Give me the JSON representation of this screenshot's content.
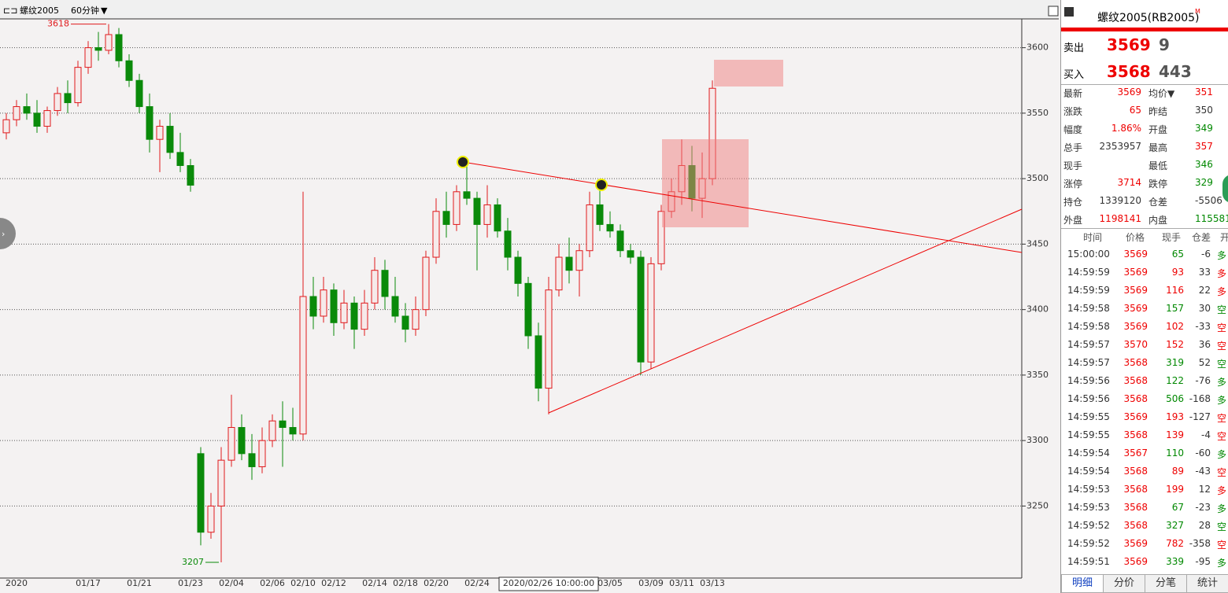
{
  "toolbar": {
    "symbol": "螺纹2005",
    "period": "60分钟"
  },
  "chart_data": {
    "type": "candlestick",
    "open": [
      3535,
      3545,
      3555,
      3550,
      3540,
      3552,
      3565,
      3558,
      3585,
      3600,
      3598,
      3610,
      3590,
      3575,
      3555,
      3530,
      3540,
      3520,
      3510,
      3290,
      3230,
      3250,
      3285,
      3310,
      3290,
      3280,
      3300,
      3315,
      3310,
      3305,
      3410,
      3395,
      3415,
      3390,
      3405,
      3385,
      3405,
      3430,
      3410,
      3395,
      3385,
      3400,
      3440,
      3475,
      3465,
      3490,
      3485,
      3465,
      3480,
      3460,
      3440,
      3420,
      3380,
      3340,
      3415,
      3440,
      3430,
      3445,
      3480,
      3465,
      3460,
      3445,
      3440,
      3360,
      3435,
      3475,
      3490,
      3510,
      3485,
      3500
    ],
    "high": [
      3550,
      3560,
      3565,
      3560,
      3555,
      3570,
      3575,
      3590,
      3605,
      3612,
      3618,
      3615,
      3595,
      3580,
      3565,
      3545,
      3550,
      3535,
      3515,
      3295,
      3260,
      3295,
      3335,
      3320,
      3305,
      3310,
      3320,
      3330,
      3325,
      3490,
      3425,
      3425,
      3420,
      3415,
      3410,
      3415,
      3440,
      3438,
      3425,
      3405,
      3410,
      3445,
      3485,
      3490,
      3495,
      3510,
      3490,
      3495,
      3485,
      3470,
      3445,
      3425,
      3390,
      3425,
      3450,
      3455,
      3450,
      3490,
      3495,
      3475,
      3465,
      3450,
      3445,
      3440,
      3480,
      3500,
      3530,
      3525,
      3520,
      3575
    ],
    "low": [
      3530,
      3540,
      3545,
      3535,
      3535,
      3548,
      3550,
      3555,
      3580,
      3590,
      3595,
      3585,
      3570,
      3550,
      3520,
      3505,
      3515,
      3505,
      3490,
      3220,
      3225,
      3207,
      3280,
      3285,
      3270,
      3275,
      3295,
      3280,
      3300,
      3300,
      3385,
      3390,
      3380,
      3385,
      3370,
      3380,
      3400,
      3400,
      3390,
      3375,
      3380,
      3395,
      3435,
      3455,
      3460,
      3480,
      3430,
      3455,
      3455,
      3430,
      3410,
      3370,
      3330,
      3320,
      3410,
      3420,
      3410,
      3440,
      3460,
      3455,
      3440,
      3435,
      3350,
      3355,
      3430,
      3470,
      3480,
      3475,
      3470,
      3495
    ],
    "close": [
      3545,
      3555,
      3550,
      3540,
      3552,
      3565,
      3558,
      3585,
      3600,
      3598,
      3610,
      3590,
      3575,
      3555,
      3530,
      3540,
      3520,
      3510,
      3495,
      3230,
      3250,
      3285,
      3310,
      3290,
      3280,
      3300,
      3315,
      3310,
      3305,
      3410,
      3395,
      3415,
      3390,
      3405,
      3385,
      3405,
      3430,
      3410,
      3395,
      3385,
      3400,
      3440,
      3475,
      3465,
      3490,
      3485,
      3465,
      3480,
      3460,
      3440,
      3420,
      3380,
      3340,
      3415,
      3440,
      3430,
      3445,
      3480,
      3465,
      3460,
      3445,
      3440,
      3360,
      3435,
      3475,
      3490,
      3510,
      3485,
      3500,
      3569
    ],
    "categories": [
      null,
      "2020",
      null,
      null,
      null,
      null,
      null,
      null,
      "01/17",
      null,
      null,
      null,
      null,
      "01/21",
      null,
      null,
      null,
      null,
      "01/23",
      null,
      null,
      null,
      "02/04",
      null,
      null,
      null,
      "02/06",
      null,
      null,
      "02/10",
      null,
      null,
      "02/12",
      null,
      null,
      null,
      "02/14",
      null,
      null,
      "02/18",
      null,
      null,
      "02/20",
      null,
      null,
      null,
      "02/24",
      null,
      null,
      null,
      null,
      null,
      null,
      "2020/02/26 10:00:00",
      null,
      null,
      null,
      null,
      null,
      "03/05",
      null,
      null,
      null,
      "03/09",
      null,
      null,
      "03/11",
      null,
      null,
      "03/13"
    ],
    "ylim": [
      3195,
      3622
    ],
    "yticks": [
      3250,
      3300,
      3350,
      3400,
      3450,
      3500,
      3550,
      3600
    ],
    "grid": true,
    "max_label": 3618,
    "min_label": 3207,
    "up_color": "#e0191c",
    "down_color": "#0a8a0a"
  },
  "quote": {
    "title": "螺纹2005(RB2005)",
    "title_mark": "M",
    "ask": {
      "label": "卖出",
      "price": "3569",
      "volume": "9"
    },
    "bid": {
      "label": "买入",
      "price": "3568",
      "volume": "443"
    },
    "rows": [
      {
        "cells": [
          "最新",
          "3569",
          "均价▼",
          "351"
        ],
        "colors": [
          "#333",
          "#e00",
          "#333",
          "#e00"
        ]
      },
      {
        "cells": [
          "涨跌",
          "65",
          "昨结",
          "350"
        ],
        "colors": [
          "#333",
          "#e00",
          "#333",
          "#333"
        ]
      },
      {
        "cells": [
          "幅度",
          "1.86%",
          "开盘",
          "349"
        ],
        "colors": [
          "#333",
          "#e00",
          "#333",
          "#080"
        ]
      },
      {
        "cells": [
          "总手",
          "2353957",
          "最高",
          "357"
        ],
        "colors": [
          "#333",
          "#333",
          "#333",
          "#e00"
        ]
      },
      {
        "cells": [
          "现手",
          null,
          "最低",
          "346"
        ],
        "colors": [
          "#333",
          "#333",
          "#333",
          "#080"
        ]
      },
      {
        "cells": [
          "涨停",
          "3714",
          "跌停",
          "329"
        ],
        "colors": [
          "#333",
          "#e00",
          "#333",
          "#080"
        ]
      },
      {
        "cells": [
          "持仓",
          "1339120",
          "仓差",
          "-5506"
        ],
        "colors": [
          "#333",
          "#333",
          "#333",
          "#333"
        ]
      },
      {
        "cells": [
          "外盘",
          "1198141",
          "内盘",
          "115581"
        ],
        "colors": [
          "#333",
          "#e00",
          "#333",
          "#080"
        ]
      }
    ]
  },
  "trades": {
    "header": [
      "时间",
      "价格",
      "现手",
      "仓差",
      "开平"
    ],
    "rows": [
      {
        "cells": [
          "15:00:00",
          "3569",
          "65",
          "-6",
          "多"
        ],
        "color": "#080"
      },
      {
        "cells": [
          "14:59:59",
          "3569",
          "93",
          "33",
          "多"
        ],
        "color": "#e00"
      },
      {
        "cells": [
          "14:59:59",
          "3569",
          "116",
          "22",
          "多"
        ],
        "color": "#e00"
      },
      {
        "cells": [
          "14:59:58",
          "3569",
          "157",
          "30",
          "空"
        ],
        "color": "#080"
      },
      {
        "cells": [
          "14:59:58",
          "3569",
          "102",
          "-33",
          "空"
        ],
        "color": "#e00"
      },
      {
        "cells": [
          "14:59:57",
          "3570",
          "152",
          "36",
          "空"
        ],
        "color": "#e00"
      },
      {
        "cells": [
          "14:59:57",
          "3568",
          "319",
          "52",
          "空"
        ],
        "color": "#080"
      },
      {
        "cells": [
          "14:59:56",
          "3568",
          "122",
          "-76",
          "多"
        ],
        "color": "#080"
      },
      {
        "cells": [
          "14:59:56",
          "3568",
          "506",
          "-168",
          "多"
        ],
        "color": "#080"
      },
      {
        "cells": [
          "14:59:55",
          "3569",
          "193",
          "-127",
          "空"
        ],
        "color": "#e00"
      },
      {
        "cells": [
          "14:59:55",
          "3568",
          "139",
          "-4",
          "空"
        ],
        "color": "#e00"
      },
      {
        "cells": [
          "14:59:54",
          "3567",
          "110",
          "-60",
          "多"
        ],
        "color": "#080"
      },
      {
        "cells": [
          "14:59:54",
          "3568",
          "89",
          "-43",
          "空"
        ],
        "color": "#e00"
      },
      {
        "cells": [
          "14:59:53",
          "3568",
          "199",
          "12",
          "多"
        ],
        "color": "#e00"
      },
      {
        "cells": [
          "14:59:53",
          "3568",
          "67",
          "-23",
          "多"
        ],
        "color": "#080"
      },
      {
        "cells": [
          "14:59:52",
          "3568",
          "327",
          "28",
          "空"
        ],
        "color": "#080"
      },
      {
        "cells": [
          "14:59:52",
          "3569",
          "782",
          "-358",
          "空"
        ],
        "color": "#e00"
      },
      {
        "cells": [
          "14:59:51",
          "3569",
          "339",
          "-95",
          "多"
        ],
        "color": "#080"
      }
    ]
  },
  "tabs": [
    "明细",
    "分价",
    "分笔",
    "统计"
  ]
}
